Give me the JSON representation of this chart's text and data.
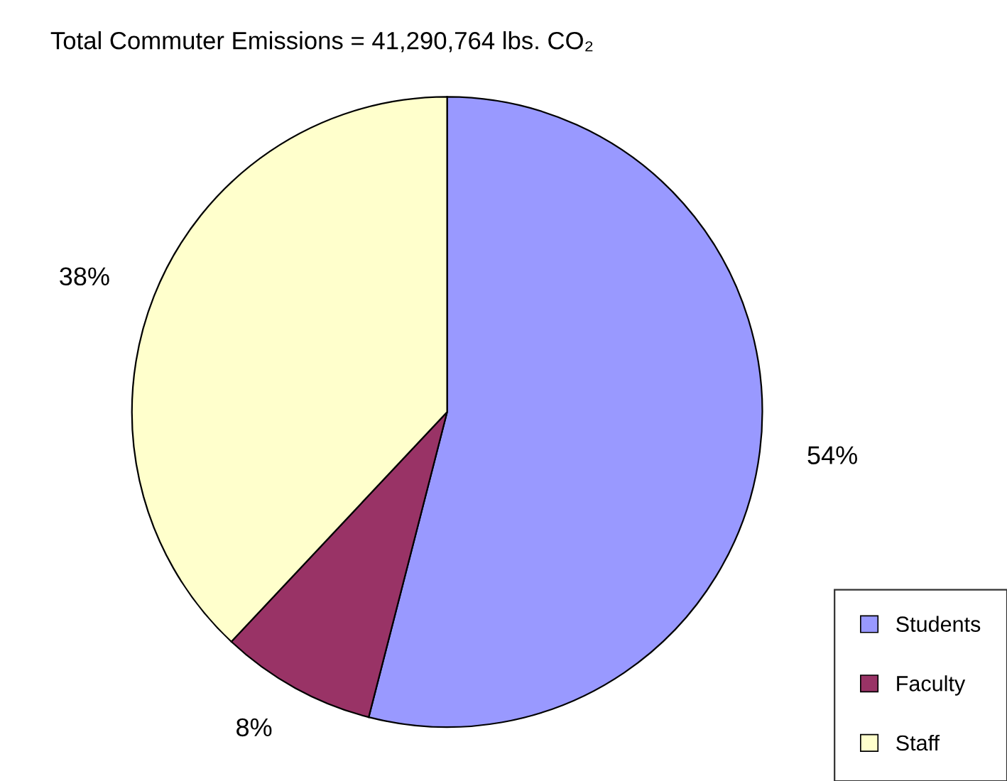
{
  "chart_data": {
    "type": "pie",
    "title": "Total Commuter Emissions = 41,290,764 lbs. CO₂",
    "categories": [
      "Students",
      "Faculty",
      "Staff"
    ],
    "values": [
      54,
      8,
      38
    ],
    "colors": [
      "#9999ff",
      "#993366",
      "#ffffcc"
    ],
    "value_labels": [
      "54%",
      "8%",
      "38%"
    ],
    "legend": "bottom right"
  }
}
